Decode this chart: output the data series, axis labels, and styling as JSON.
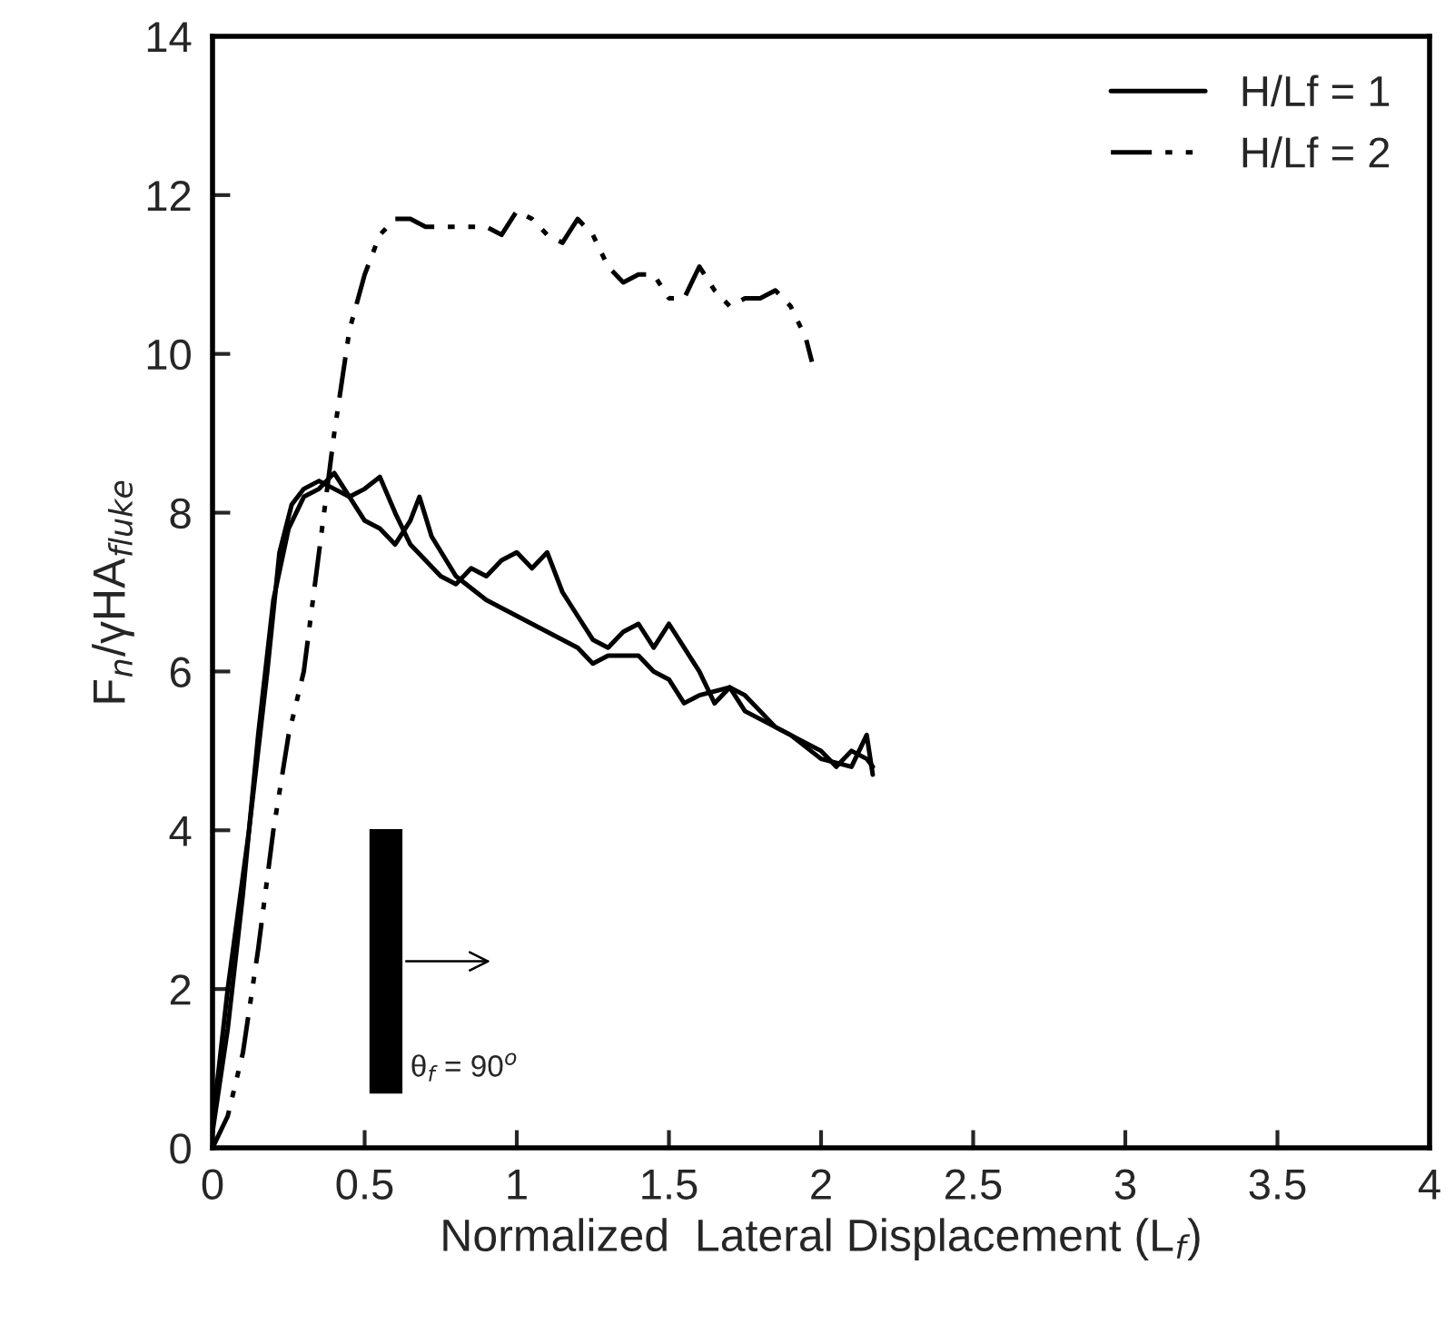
{
  "chart_data": {
    "type": "line",
    "xlabel": "Normalized  Lateral Displacement (L$_{f}$)",
    "ylabel": "F$_{n}$/γHA$_{fluke}$",
    "xlim": [
      0,
      4
    ],
    "xticks": [
      0,
      0.5,
      1,
      1.5,
      2,
      2.5,
      3,
      3.5,
      4
    ],
    "ylim": [
      0,
      14
    ],
    "yticks": [
      0,
      2,
      4,
      6,
      8,
      10,
      12,
      14
    ],
    "grid": false,
    "legend": "top right",
    "marker": "none",
    "annotations": [
      "θ$_{f}$ = 90$^{o}$"
    ],
    "series": [
      {
        "name": "H/Lf = 1",
        "color": "#000000",
        "line_style": "solid",
        "x": [
          0,
          0.05,
          0.12,
          0.18,
          0.22,
          0.26,
          0.3,
          0.35,
          0.4,
          0.45,
          0.5,
          0.55,
          0.6,
          0.65,
          0.7,
          0.75,
          0.8,
          0.85,
          0.9,
          0.95,
          1.0,
          1.05,
          1.1,
          1.15,
          1.2,
          1.25,
          1.3,
          1.35,
          1.4,
          1.45,
          1.5,
          1.55,
          1.6,
          1.65,
          1.7,
          1.75,
          1.8,
          1.85,
          1.9,
          2.0,
          2.05,
          2.1,
          2.15,
          2.17
        ],
        "values": [
          0.3,
          2,
          4,
          6,
          7.5,
          8.1,
          8.3,
          8.4,
          8.3,
          8.2,
          8.3,
          8.45,
          8.0,
          7.6,
          7.4,
          7.2,
          7.1,
          7.3,
          7.2,
          7.4,
          7.5,
          7.3,
          7.5,
          7.0,
          6.7,
          6.4,
          6.3,
          6.5,
          6.6,
          6.3,
          6.6,
          6.3,
          6.0,
          5.6,
          5.8,
          5.7,
          5.5,
          5.3,
          5.2,
          5.0,
          4.8,
          5.0,
          4.9,
          4.8
        ]
      },
      {
        "color": "#000000",
        "line_style": "solid",
        "x": [
          0,
          0.05,
          0.1,
          0.15,
          0.2,
          0.25,
          0.3,
          0.35,
          0.4,
          0.45,
          0.5,
          0.55,
          0.6,
          0.65,
          0.68,
          0.72,
          0.8,
          0.9,
          1.0,
          1.1,
          1.2,
          1.25,
          1.3,
          1.4,
          1.45,
          1.5,
          1.55,
          1.6,
          1.7,
          1.75,
          1.8,
          1.9,
          2.0,
          2.1,
          2.15,
          2.17
        ],
        "values": [
          0.2,
          1.5,
          3.2,
          5.2,
          6.9,
          7.8,
          8.2,
          8.3,
          8.5,
          8.2,
          7.9,
          7.8,
          7.6,
          7.9,
          8.2,
          7.7,
          7.2,
          6.9,
          6.7,
          6.5,
          6.3,
          6.1,
          6.2,
          6.2,
          6.0,
          5.9,
          5.6,
          5.7,
          5.8,
          5.5,
          5.4,
          5.2,
          4.9,
          4.8,
          5.2,
          4.7
        ]
      },
      {
        "name": "H/Lf = 2",
        "color": "#000000",
        "line_style": "dashdot",
        "x": [
          0,
          0.05,
          0.1,
          0.15,
          0.2,
          0.25,
          0.3,
          0.35,
          0.4,
          0.45,
          0.5,
          0.55,
          0.6,
          0.65,
          0.7,
          0.8,
          0.9,
          0.95,
          1.0,
          1.05,
          1.1,
          1.15,
          1.2,
          1.25,
          1.3,
          1.35,
          1.4,
          1.45,
          1.5,
          1.55,
          1.6,
          1.65,
          1.7,
          1.75,
          1.8,
          1.85,
          1.9,
          1.95,
          1.97
        ],
        "values": [
          0,
          0.4,
          1.2,
          2.5,
          4.0,
          5.2,
          6.0,
          7.5,
          9.0,
          10.3,
          11.0,
          11.5,
          11.7,
          11.7,
          11.6,
          11.6,
          11.6,
          11.5,
          11.8,
          11.7,
          11.5,
          11.4,
          11.7,
          11.5,
          11.1,
          10.9,
          11.0,
          11.0,
          10.7,
          10.7,
          11.1,
          10.8,
          10.6,
          10.7,
          10.7,
          10.8,
          10.6,
          10.2,
          9.9
        ]
      }
    ]
  }
}
